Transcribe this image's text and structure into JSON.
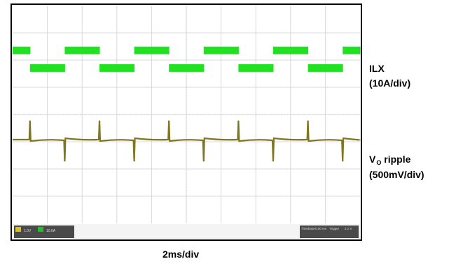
{
  "chart_data": {
    "type": "line",
    "title": "",
    "xlabel": "2ms/div",
    "grid": true,
    "divisions": {
      "x": 10,
      "y": 8
    },
    "series": [
      {
        "name": "ILX",
        "scale": "(10A/div)",
        "color": "#22e022",
        "high_div": 2.0,
        "low_div": 1.25,
        "band_div": 0.28,
        "period_div": 2.0,
        "levels": [
          "low",
          "high",
          "high",
          "low",
          "low",
          "high",
          "high",
          "low",
          "low",
          "high",
          "high",
          "low",
          "low",
          "high",
          "high",
          "low",
          "low",
          "high",
          "high",
          "low"
        ]
      },
      {
        "name_main": "V",
        "name_sub": "O",
        "name_rest": " ripple",
        "scale": "(500mV/div)",
        "color": "#807520",
        "baseline_div": 5.0,
        "spike_up_div": 0.7,
        "spike_down_div": 0.8,
        "period_div": 2.0
      }
    ],
    "status_bar": {
      "left_fields": [
        "1.0V",
        "10.0A"
      ],
      "right_fields": [
        "Timebase",
        "0.00 ms",
        "Trigger",
        "2.1 V"
      ]
    }
  },
  "colors": {
    "screen_bg": "#ffffff",
    "grid": "#d9d9d9",
    "frame": "#000000",
    "status_bar": "#4a4a4a"
  }
}
